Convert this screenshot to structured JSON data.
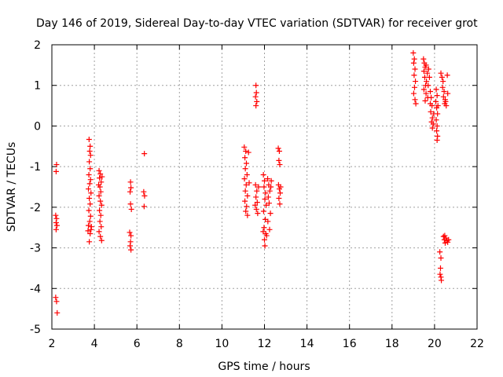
{
  "chart_data": {
    "type": "scatter",
    "title": "Day 146 of 2019, Sidereal Day-to-day VTEC variation (SDTVAR) for receiver grot",
    "xlabel": "GPS time / hours",
    "ylabel": "SDTVAR / TECUs",
    "xlim": [
      2,
      22
    ],
    "ylim": [
      -5,
      2
    ],
    "xticks": [
      "2",
      "4",
      "6",
      "8",
      "10",
      "12",
      "14",
      "16",
      "18",
      "20",
      "22"
    ],
    "yticks": [
      "2",
      "1",
      "0",
      "-1",
      "-2",
      "-3",
      "-4",
      "-5"
    ],
    "grid": true,
    "marker": "plus",
    "color": "#ff0000",
    "series": [
      {
        "name": "SDTVAR",
        "points": [
          [
            2.22,
            -0.95
          ],
          [
            2.2,
            -1.12
          ],
          [
            2.18,
            -2.2
          ],
          [
            2.22,
            -2.28
          ],
          [
            2.2,
            -2.38
          ],
          [
            2.24,
            -2.45
          ],
          [
            2.2,
            -2.55
          ],
          [
            2.18,
            -4.22
          ],
          [
            2.22,
            -4.32
          ],
          [
            2.25,
            -4.6
          ],
          [
            3.75,
            -0.33
          ],
          [
            3.8,
            -0.5
          ],
          [
            3.78,
            -0.62
          ],
          [
            3.82,
            -0.72
          ],
          [
            3.76,
            -0.88
          ],
          [
            3.8,
            -1.05
          ],
          [
            3.74,
            -1.2
          ],
          [
            3.82,
            -1.32
          ],
          [
            3.78,
            -1.42
          ],
          [
            3.72,
            -1.55
          ],
          [
            3.84,
            -1.65
          ],
          [
            3.76,
            -1.78
          ],
          [
            3.8,
            -1.92
          ],
          [
            3.74,
            -2.08
          ],
          [
            3.82,
            -2.22
          ],
          [
            3.78,
            -2.35
          ],
          [
            3.72,
            -2.45
          ],
          [
            3.84,
            -2.55
          ],
          [
            3.8,
            -2.65
          ],
          [
            3.76,
            -2.85
          ],
          [
            3.86,
            -2.48
          ],
          [
            3.7,
            -2.58
          ],
          [
            4.22,
            -1.1
          ],
          [
            4.28,
            -1.18
          ],
          [
            4.24,
            -1.28
          ],
          [
            4.32,
            -1.38
          ],
          [
            4.26,
            -1.5
          ],
          [
            4.3,
            -1.62
          ],
          [
            4.22,
            -1.72
          ],
          [
            4.28,
            -1.85
          ],
          [
            4.34,
            -1.95
          ],
          [
            4.24,
            -2.08
          ],
          [
            4.3,
            -2.2
          ],
          [
            4.26,
            -2.35
          ],
          [
            4.32,
            -2.48
          ],
          [
            4.22,
            -2.6
          ],
          [
            4.28,
            -2.72
          ],
          [
            4.34,
            -2.82
          ],
          [
            4.36,
            -1.25
          ],
          [
            4.2,
            -1.45
          ],
          [
            5.7,
            -1.38
          ],
          [
            5.72,
            -1.52
          ],
          [
            5.68,
            -1.62
          ],
          [
            5.7,
            -1.92
          ],
          [
            5.74,
            -2.05
          ],
          [
            5.66,
            -2.62
          ],
          [
            5.72,
            -2.7
          ],
          [
            5.7,
            -2.85
          ],
          [
            5.68,
            -2.95
          ],
          [
            5.72,
            -3.05
          ],
          [
            6.35,
            -0.68
          ],
          [
            6.32,
            -1.62
          ],
          [
            6.36,
            -1.72
          ],
          [
            6.34,
            -1.98
          ],
          [
            11.05,
            -0.52
          ],
          [
            11.12,
            -0.62
          ],
          [
            11.08,
            -0.78
          ],
          [
            11.15,
            -0.92
          ],
          [
            11.1,
            -1.05
          ],
          [
            11.18,
            -1.2
          ],
          [
            11.06,
            -1.3
          ],
          [
            11.14,
            -1.45
          ],
          [
            11.1,
            -1.6
          ],
          [
            11.2,
            -1.72
          ],
          [
            11.08,
            -1.85
          ],
          [
            11.16,
            -1.98
          ],
          [
            11.12,
            -2.1
          ],
          [
            11.2,
            -2.2
          ],
          [
            11.25,
            -0.65
          ],
          [
            11.28,
            -1.4
          ],
          [
            11.6,
            1.0
          ],
          [
            11.62,
            0.82
          ],
          [
            11.58,
            0.72
          ],
          [
            11.64,
            0.6
          ],
          [
            11.6,
            0.5
          ],
          [
            11.58,
            -1.45
          ],
          [
            11.64,
            -1.6
          ],
          [
            11.6,
            -1.75
          ],
          [
            11.66,
            -1.88
          ],
          [
            11.62,
            -2.05
          ],
          [
            11.68,
            -2.15
          ],
          [
            11.72,
            -1.5
          ],
          [
            11.56,
            -1.95
          ],
          [
            11.95,
            -1.2
          ],
          [
            12.0,
            -1.35
          ],
          [
            11.98,
            -1.5
          ],
          [
            12.05,
            -1.65
          ],
          [
            12.02,
            -1.8
          ],
          [
            12.08,
            -1.95
          ],
          [
            11.96,
            -2.1
          ],
          [
            12.04,
            -2.3
          ],
          [
            11.98,
            -2.5
          ],
          [
            12.06,
            -2.65
          ],
          [
            12.0,
            -2.8
          ],
          [
            12.02,
            -2.95
          ],
          [
            12.1,
            -2.7
          ],
          [
            11.94,
            -2.6
          ],
          [
            12.15,
            -1.3
          ],
          [
            12.2,
            -1.45
          ],
          [
            12.25,
            -1.6
          ],
          [
            12.18,
            -1.75
          ],
          [
            12.3,
            -1.5
          ],
          [
            12.22,
            -1.9
          ],
          [
            12.28,
            -2.15
          ],
          [
            12.16,
            -2.35
          ],
          [
            12.24,
            -2.55
          ],
          [
            12.32,
            -1.35
          ],
          [
            12.65,
            -0.55
          ],
          [
            12.7,
            -0.62
          ],
          [
            12.68,
            -0.85
          ],
          [
            12.72,
            -0.95
          ],
          [
            12.66,
            -1.45
          ],
          [
            12.7,
            -1.55
          ],
          [
            12.74,
            -1.65
          ],
          [
            12.68,
            -1.78
          ],
          [
            12.72,
            -1.92
          ],
          [
            12.76,
            -1.5
          ],
          [
            19.0,
            1.8
          ],
          [
            19.05,
            1.65
          ],
          [
            19.02,
            1.55
          ],
          [
            19.08,
            1.4
          ],
          [
            19.04,
            1.25
          ],
          [
            19.1,
            1.1
          ],
          [
            19.06,
            0.95
          ],
          [
            19.02,
            0.8
          ],
          [
            19.08,
            0.65
          ],
          [
            19.12,
            0.55
          ],
          [
            19.48,
            1.65
          ],
          [
            19.52,
            1.55
          ],
          [
            19.56,
            1.45
          ],
          [
            19.5,
            1.35
          ],
          [
            19.6,
            1.5
          ],
          [
            19.54,
            1.2
          ],
          [
            19.62,
            1.1
          ],
          [
            19.58,
            1.0
          ],
          [
            19.66,
            1.3
          ],
          [
            19.5,
            0.9
          ],
          [
            19.6,
            0.8
          ],
          [
            19.68,
            0.7
          ],
          [
            19.56,
            0.62
          ],
          [
            19.72,
            1.4
          ],
          [
            19.76,
            1.2
          ],
          [
            19.7,
            1.0
          ],
          [
            19.8,
            0.85
          ],
          [
            19.84,
            0.7
          ],
          [
            19.88,
            0.5
          ],
          [
            19.82,
            0.35
          ],
          [
            19.9,
            0.2
          ],
          [
            19.86,
            0.1
          ],
          [
            19.94,
            0.05
          ],
          [
            19.9,
            -0.05
          ],
          [
            19.96,
            0.3
          ],
          [
            19.8,
            0.55
          ],
          [
            20.08,
            0.9
          ],
          [
            20.12,
            0.75
          ],
          [
            20.06,
            0.6
          ],
          [
            20.1,
            0.45
          ],
          [
            20.14,
            0.3
          ],
          [
            20.08,
            0.15
          ],
          [
            20.12,
            0.0
          ],
          [
            20.1,
            -0.12
          ],
          [
            20.14,
            -0.25
          ],
          [
            20.12,
            -0.35
          ],
          [
            20.16,
            0.5
          ],
          [
            20.3,
            1.3
          ],
          [
            20.35,
            1.2
          ],
          [
            20.4,
            1.1
          ],
          [
            20.38,
            0.95
          ],
          [
            20.45,
            0.85
          ],
          [
            20.42,
            0.72
          ],
          [
            20.5,
            0.65
          ],
          [
            20.48,
            0.55
          ],
          [
            20.55,
            0.5
          ],
          [
            20.52,
            0.6
          ],
          [
            20.6,
            1.25
          ],
          [
            20.62,
            0.8
          ],
          [
            20.25,
            -3.1
          ],
          [
            20.3,
            -3.25
          ],
          [
            20.28,
            -3.5
          ],
          [
            20.26,
            -3.65
          ],
          [
            20.32,
            -3.8
          ],
          [
            20.3,
            -3.72
          ],
          [
            20.42,
            -2.72
          ],
          [
            20.46,
            -2.8
          ],
          [
            20.5,
            -2.88
          ],
          [
            20.54,
            -2.76
          ],
          [
            20.58,
            -2.82
          ],
          [
            20.62,
            -2.86
          ],
          [
            20.66,
            -2.8
          ],
          [
            20.48,
            -2.7
          ]
        ]
      }
    ]
  }
}
